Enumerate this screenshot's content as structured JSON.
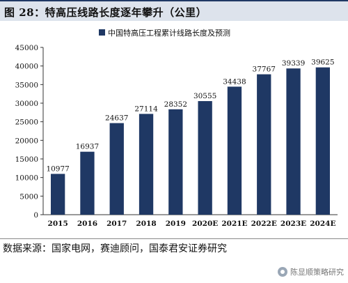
{
  "figure": {
    "title": "图 28：特高压线路长度逐年攀升（公里）",
    "source": "数据来源：国家电网，赛迪顾问，国泰君安证券研究",
    "watermark": "陈显顺策略研究"
  },
  "chart_data": {
    "type": "bar",
    "categories": [
      "2015",
      "2016",
      "2017",
      "2018",
      "2019",
      "2020E",
      "2021E",
      "2022E",
      "2023E",
      "2024E"
    ],
    "series": [
      {
        "name": "中国特高压工程累计线路长度及预测",
        "values": [
          10977,
          16937,
          24637,
          27114,
          28352,
          30555,
          34438,
          37767,
          39339,
          39625
        ]
      }
    ],
    "ylim": [
      0,
      45000
    ],
    "yticks": [
      0,
      5000,
      10000,
      15000,
      20000,
      25000,
      30000,
      35000,
      40000,
      45000
    ],
    "legend_position": "top-center",
    "grid": false,
    "bar_color": "#1f3864"
  }
}
